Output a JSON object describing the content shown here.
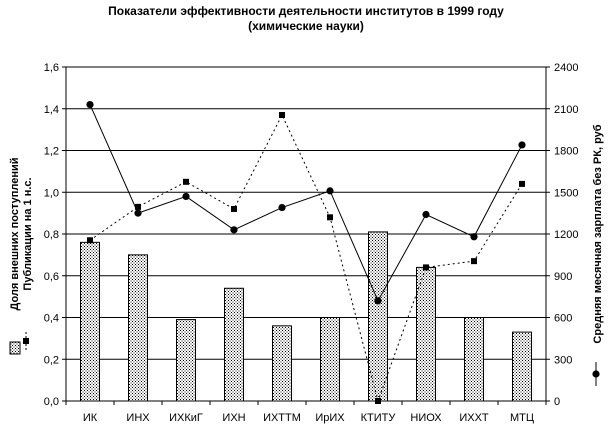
{
  "title": "Показатели эффективности деятельности институтов в 1999 году",
  "subtitle": "(химические науки)",
  "chart_data": {
    "type": "bar",
    "categories": [
      "ИК",
      "ИНХ",
      "ИХКиГ",
      "ИХН",
      "ИХТТМ",
      "ИрИХ",
      "КТИТУ",
      "НИОХ",
      "ИХХТ",
      "МТЦ"
    ],
    "y_left": {
      "ylim": [
        0,
        1.6
      ],
      "ticks": [
        "0,0",
        "0,2",
        "0,4",
        "0,6",
        "0,8",
        "1,0",
        "1,2",
        "1,4",
        "1,6"
      ],
      "labels": [
        "Доля внешних поступлений",
        "Публикации на 1 н.с."
      ]
    },
    "y_right": {
      "ylim": [
        0,
        2400
      ],
      "ticks": [
        "0",
        "300",
        "600",
        "900",
        "1200",
        "1500",
        "1800",
        "2100",
        "2400"
      ],
      "label": "Средняя месячная зарплата без РК, руб"
    },
    "grid": true,
    "series": [
      {
        "kind": "bar",
        "axis": "left",
        "fill": "#ffffff",
        "values": [
          0.76,
          0.7,
          0.39,
          0.54,
          0.36,
          0.4,
          0.81,
          0.64,
          0.4,
          0.33
        ]
      },
      {
        "kind": "line",
        "style": "dotted",
        "marker": "square",
        "axis": "left",
        "color": "#000000",
        "values": [
          0.77,
          0.93,
          1.05,
          0.92,
          1.37,
          0.88,
          0.0,
          0.64,
          0.67,
          1.04
        ]
      },
      {
        "kind": "line",
        "style": "solid",
        "marker": "circle",
        "axis": "right",
        "color": "#000000",
        "values": [
          2130,
          1350,
          1470,
          1230,
          1390,
          1510,
          720,
          1340,
          1180,
          1840
        ]
      }
    ],
    "legend_glyphs": {
      "bar": "░",
      "dotted": "‒‒■‒‒",
      "solid": "—●—"
    }
  }
}
